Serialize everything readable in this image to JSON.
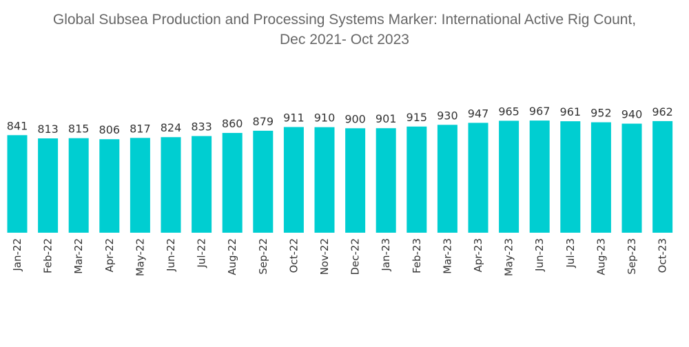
{
  "chart_data": {
    "type": "bar",
    "title": "Global Subsea Production and Processing Systems Marker: International Active Rig Count,",
    "subtitle": "Dec 2021- Oct 2023",
    "xlabel": "",
    "ylabel": "",
    "ylim": [
      0,
      980
    ],
    "grid": false,
    "legend": "none",
    "bar_color": "#00CED1",
    "categories": [
      "Jan-22",
      "Feb-22",
      "Mar-22",
      "Apr-22",
      "May-22",
      "Jun-22",
      "Jul-22",
      "Aug-22",
      "Sep-22",
      "Oct-22",
      "Nov-22",
      "Dec-22",
      "Jan-23",
      "Feb-23",
      "Mar-23",
      "Apr-23",
      "May-23",
      "Jun-23",
      "Jul-23",
      "Aug-23",
      "Sep-23",
      "Oct-23"
    ],
    "values": [
      841,
      813,
      815,
      806,
      817,
      824,
      833,
      860,
      879,
      911,
      910,
      900,
      901,
      915,
      930,
      947,
      965,
      967,
      961,
      952,
      940,
      962
    ]
  }
}
